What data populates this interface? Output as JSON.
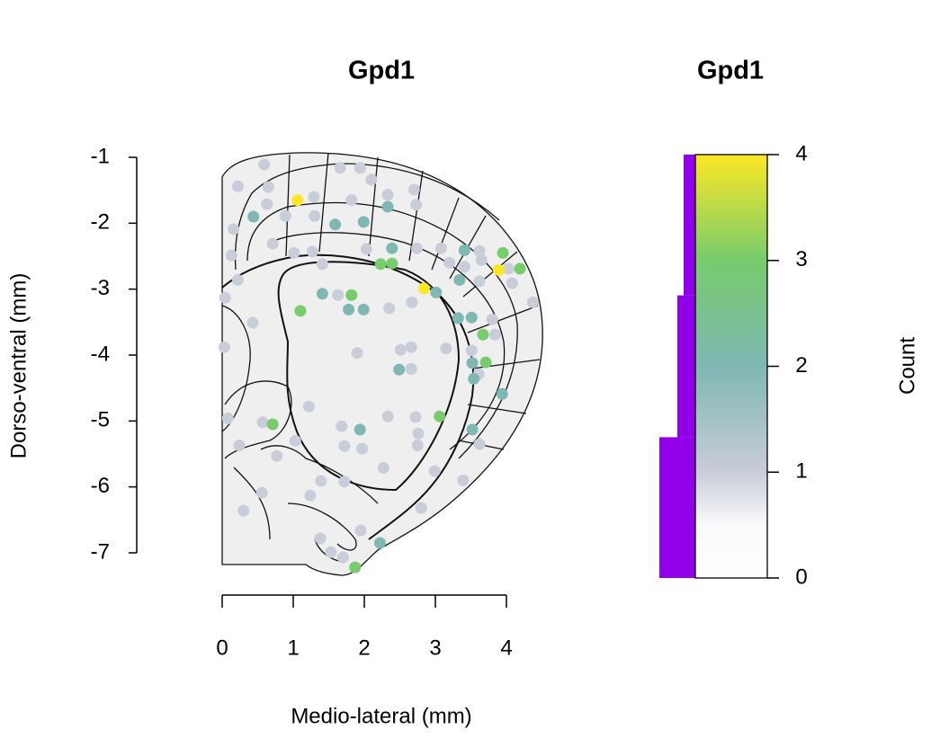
{
  "chart_data": [
    {
      "type": "scatter",
      "title": "Gpd1",
      "x_label": "Medio-lateral (mm)",
      "y_label": "Dorso-ventral (mm)",
      "xlim": [
        0,
        4
      ],
      "xticks": [
        0,
        1,
        2,
        3,
        4
      ],
      "ylim": [
        -1,
        -7
      ],
      "yticks": [
        -1,
        -2,
        -3,
        -4,
        -5,
        -6,
        -7
      ],
      "x": [
        1.06,
        3.89,
        2.84,
        3.95,
        4.19,
        2.23,
        2.39,
        1.82,
        1.1,
        3.67,
        3.71,
        3.06,
        0.71,
        1.87,
        0.44,
        1.59,
        1.99,
        2.33,
        2.39,
        3.01,
        3.34,
        3.41,
        1.41,
        1.78,
        1.99,
        3.32,
        3.51,
        3.52,
        2.49,
        1.94,
        3.52,
        3.94,
        2.22,
        3.54,
        0.59,
        1.66,
        1.94,
        0.22,
        0.65,
        1.29,
        1.82,
        2.1,
        2.33,
        2.7,
        2.73,
        0.63,
        0.89,
        1.3,
        0.16,
        0.13,
        0.22,
        0.04,
        0.71,
        1.01,
        1.27,
        1.41,
        2.03,
        2.74,
        3.08,
        3.2,
        3.41,
        3.62,
        3.65,
        4.03,
        3.62,
        4.08,
        4.37,
        1.63,
        2.35,
        2.67,
        3.8,
        3.84,
        0.43,
        0.03,
        2.51,
        2.66,
        2.66,
        3.51,
        3.15,
        1.9,
        3.61,
        1.22,
        0.57,
        1.68,
        2.33,
        2.72,
        2.76,
        2.75,
        1.72,
        1.97,
        1.03,
        0.08,
        0.24,
        0.77,
        1.72,
        2.27,
        3.62,
        3.39,
        2.99,
        1.39,
        1.24,
        0.56,
        0.3,
        1.95,
        1.38,
        1.53,
        1.7,
        2.8
      ],
      "y": [
        -1.65,
        -2.71,
        -2.99,
        -2.45,
        -2.69,
        -2.62,
        -2.61,
        -3.09,
        -3.33,
        -3.69,
        -4.11,
        -4.93,
        -5.05,
        -7.22,
        -1.9,
        -2.02,
        -1.98,
        -1.75,
        -2.38,
        -3.05,
        -2.86,
        -2.41,
        -3.07,
        -3.31,
        -3.31,
        -3.44,
        -3.43,
        -4.12,
        -4.22,
        -5.13,
        -5.13,
        -4.59,
        -6.85,
        -4.36,
        -1.11,
        -1.16,
        -1.16,
        -1.44,
        -1.45,
        -1.6,
        -1.65,
        -1.34,
        -1.57,
        -1.49,
        -1.72,
        -1.71,
        -1.89,
        -1.89,
        -2.09,
        -2.49,
        -2.86,
        -3.13,
        -2.31,
        -2.45,
        -2.43,
        -2.62,
        -2.39,
        -2.38,
        -2.38,
        -2.6,
        -2.66,
        -2.42,
        -2.56,
        -2.69,
        -2.88,
        -2.91,
        -3.2,
        -3.09,
        -3.29,
        -3.2,
        -3.46,
        -3.69,
        -3.51,
        -3.88,
        -3.92,
        -3.88,
        -4.21,
        -3.93,
        -3.9,
        -3.97,
        -4.29,
        -4.78,
        -5.02,
        -5.08,
        -4.93,
        -4.94,
        -5.19,
        -5.37,
        -5.38,
        -5.42,
        -5.3,
        -4.96,
        -5.37,
        -5.53,
        -5.92,
        -5.71,
        -5.35,
        -5.9,
        -5.76,
        -5.91,
        -6.13,
        -6.09,
        -6.36,
        -6.66,
        -6.78,
        -6.99,
        -7.07,
        -6.32
      ],
      "count": [
        4,
        4,
        4,
        3,
        3,
        3,
        3,
        3,
        3,
        3,
        3,
        3,
        3,
        3,
        2,
        2,
        2,
        2,
        2,
        2,
        2,
        2,
        2,
        2,
        2,
        2,
        2,
        2,
        2,
        2,
        2,
        2,
        2,
        2,
        1,
        1,
        1,
        1,
        1,
        1,
        1,
        1,
        1,
        1,
        1,
        1,
        1,
        1,
        1,
        1,
        1,
        1,
        1,
        1,
        1,
        1,
        1,
        1,
        1,
        1,
        1,
        1,
        1,
        1,
        1,
        1,
        1,
        1,
        1,
        1,
        1,
        1,
        1,
        1,
        1,
        1,
        1,
        1,
        1,
        1,
        1,
        1,
        1,
        1,
        1,
        1,
        1,
        1,
        1,
        1,
        1,
        1,
        1,
        1,
        1,
        1,
        1,
        1,
        1,
        1,
        1,
        1,
        1,
        1,
        1,
        1,
        1,
        1
      ]
    },
    {
      "type": "colorbar",
      "title": "Gpd1",
      "y_label": "Count",
      "ylim": [
        0,
        4
      ],
      "yticks": [
        0,
        1,
        2,
        3,
        4
      ],
      "colorscale": [
        {
          "value": 0,
          "color": "#ffffff"
        },
        {
          "value": 0.5,
          "color": "#fafafb"
        },
        {
          "value": 1,
          "color": "#c9ccd9"
        },
        {
          "value": 2,
          "color": "#7fb7b3"
        },
        {
          "value": 3,
          "color": "#78cc6d"
        },
        {
          "value": 4,
          "color": "#fde725"
        }
      ],
      "histogram": {
        "bins": [
          0,
          1.33,
          2.67,
          4
        ],
        "values": [
          0.4,
          0.2,
          0.13
        ],
        "color": "#9000e8"
      }
    }
  ]
}
